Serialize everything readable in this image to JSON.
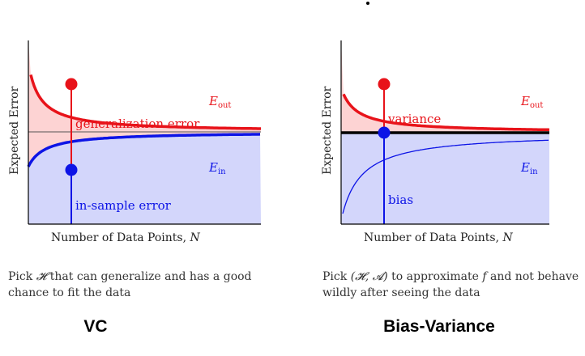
{
  "colors": {
    "red": "#e8131a",
    "blue": "#0d14e6",
    "red_fill": "#fdd3d3",
    "blue_fill": "#d3d6fb",
    "axis": "#000000"
  },
  "panels": [
    {
      "id": "vc",
      "ylabel": "Expected Error",
      "xlabel": "Number of Data Points,",
      "xlabel_var": "N",
      "eout_label": "E",
      "eout_sub": "out",
      "ein_label": "E",
      "ein_sub": "in",
      "upper_region_label": "generalization error",
      "lower_region_label": "in-sample error",
      "caption_prefix": "Pick",
      "caption_symbol": "𝓗",
      "caption_rest": "that can generalize and has a good chance to fit the data",
      "title": "VC"
    },
    {
      "id": "bias-variance",
      "ylabel": "Expected Error",
      "xlabel": "Number of Data Points,",
      "xlabel_var": "N",
      "eout_label": "E",
      "eout_sub": "out",
      "ein_label": "E",
      "ein_sub": "in",
      "upper_region_label": "variance",
      "lower_region_label": "bias",
      "caption_prefix": "Pick",
      "caption_symbol": "(𝓗, 𝓐)",
      "caption_mid": "to approximate",
      "caption_var": "f",
      "caption_rest": "and not behave wildly after seeing the data",
      "title": "Bias-Variance"
    }
  ]
}
